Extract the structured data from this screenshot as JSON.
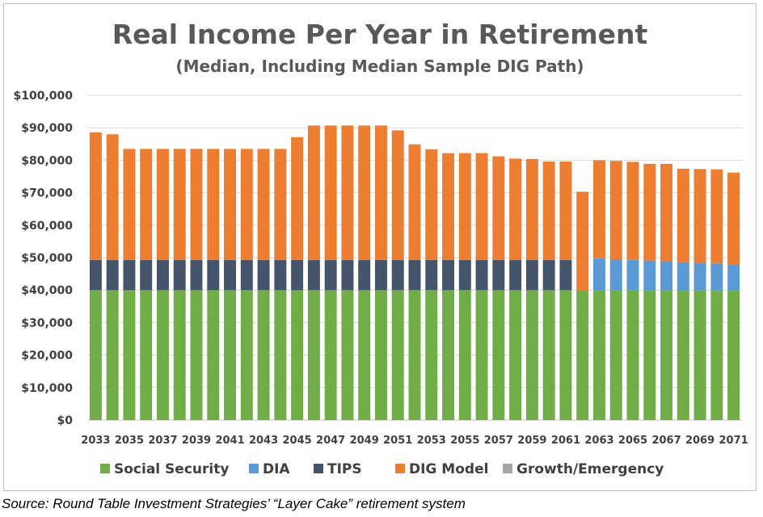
{
  "chart_data": {
    "type": "bar",
    "stacked": true,
    "title": "Real Income Per Year in Retirement",
    "subtitle": "(Median, Including Median Sample DIG Path)",
    "xlabel": "",
    "ylabel": "",
    "ylim": [
      0,
      100000
    ],
    "yticks": [
      "$0",
      "$10,000",
      "$20,000",
      "$30,000",
      "$40,000",
      "$50,000",
      "$60,000",
      "$70,000",
      "$80,000",
      "$90,000",
      "$100,000"
    ],
    "grid": true,
    "legend_position": "bottom",
    "categories": [
      2033,
      2034,
      2035,
      2036,
      2037,
      2038,
      2039,
      2040,
      2041,
      2042,
      2043,
      2044,
      2045,
      2046,
      2047,
      2048,
      2049,
      2050,
      2051,
      2052,
      2053,
      2054,
      2055,
      2056,
      2057,
      2058,
      2059,
      2060,
      2061,
      2062,
      2063,
      2064,
      2065,
      2066,
      2067,
      2068,
      2069,
      2070,
      2071
    ],
    "xtick_labels": [
      "2033",
      "2035",
      "2037",
      "2039",
      "2041",
      "2043",
      "2045",
      "2047",
      "2049",
      "2051",
      "2053",
      "2055",
      "2057",
      "2059",
      "2061",
      "2063",
      "2065",
      "2067",
      "2069",
      "2071"
    ],
    "series": [
      {
        "name": "Social Security",
        "color": "#70ad47",
        "values": [
          40000,
          40000,
          40000,
          40000,
          40000,
          40000,
          40000,
          40000,
          40000,
          40000,
          40000,
          40000,
          40000,
          40000,
          40000,
          40000,
          40000,
          40000,
          40000,
          40000,
          40000,
          40000,
          40000,
          40000,
          40000,
          40000,
          40000,
          40000,
          40000,
          40000,
          40000,
          40000,
          40000,
          40000,
          40000,
          40000,
          40000,
          40000,
          40000
        ]
      },
      {
        "name": "DIA",
        "color": "#5b9bd5",
        "values": [
          0,
          0,
          0,
          0,
          0,
          0,
          0,
          0,
          0,
          0,
          0,
          0,
          0,
          0,
          0,
          0,
          0,
          0,
          0,
          0,
          0,
          0,
          0,
          0,
          0,
          0,
          0,
          0,
          0,
          0,
          9800,
          9500,
          9300,
          9100,
          8900,
          8600,
          8400,
          8200,
          8000
        ]
      },
      {
        "name": "TIPS",
        "color": "#44546a",
        "values": [
          9300,
          9300,
          9300,
          9300,
          9300,
          9300,
          9300,
          9300,
          9300,
          9300,
          9300,
          9300,
          9300,
          9300,
          9300,
          9300,
          9300,
          9300,
          9300,
          9300,
          9300,
          9300,
          9300,
          9300,
          9300,
          9300,
          9300,
          9300,
          9300,
          0,
          0,
          0,
          0,
          0,
          0,
          0,
          0,
          0,
          0
        ]
      },
      {
        "name": "DIG Model",
        "color": "#ed7d31",
        "values": [
          39300,
          38700,
          34200,
          34200,
          34200,
          34200,
          34200,
          34200,
          34200,
          34200,
          34200,
          34200,
          37800,
          41400,
          41400,
          41400,
          41400,
          41400,
          39900,
          35600,
          34100,
          32900,
          32900,
          32900,
          31900,
          31200,
          31100,
          30300,
          30300,
          30300,
          30200,
          30300,
          30200,
          29800,
          30000,
          28800,
          28900,
          29000,
          28200
        ]
      },
      {
        "name": "Growth/Emergency",
        "color": "#a5a5a5",
        "values": [
          0,
          0,
          0,
          0,
          0,
          0,
          0,
          0,
          0,
          0,
          0,
          0,
          0,
          0,
          0,
          0,
          0,
          0,
          0,
          0,
          0,
          0,
          0,
          0,
          0,
          0,
          0,
          0,
          0,
          0,
          0,
          0,
          0,
          0,
          0,
          0,
          0,
          0,
          0
        ]
      }
    ]
  },
  "source_note": "Source: Round Table Investment Strategies’ “Layer Cake” retirement system"
}
